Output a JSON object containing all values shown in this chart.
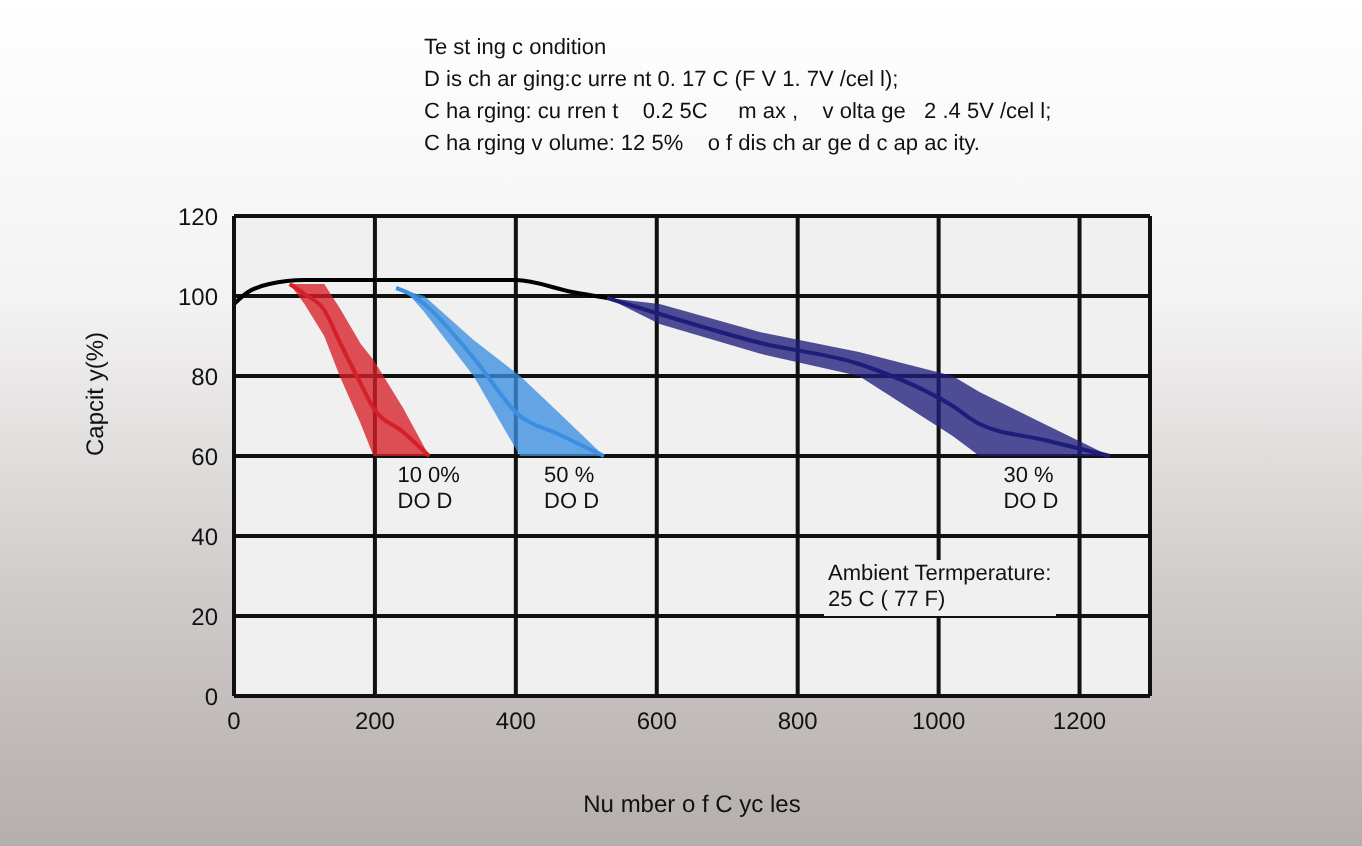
{
  "chart_data": {
    "type": "line",
    "title": "Te st ing c ondition",
    "subtitle": "D is ch ar ging:c urre nt 0. 17 C (F V 1. 7V /cel l);\nC ha rging: cu rren t    0.2 5C     m ax ,    v olta ge   2 .4 5V /cel l;\nC ha rging v olume: 12 5%    o f dis ch ar ge d c ap ac ity.",
    "xlabel": "Nu mber o f C yc les",
    "ylabel": "Capcit y(%)",
    "xlim": [
      0,
      1300
    ],
    "xticks": [
      0,
      200,
      400,
      600,
      800,
      1000,
      1200
    ],
    "ylim": [
      0,
      120
    ],
    "yticks": [
      0,
      20,
      40,
      60,
      80,
      100,
      120
    ],
    "grid": true,
    "legend": false,
    "series": [
      {
        "color": "#000000",
        "x": [
          0,
          20,
          50,
          100,
          200,
          300,
          400,
          480,
          530
        ],
        "values": [
          98,
          101,
          103,
          104,
          104,
          104,
          104,
          101,
          99.5
        ]
      },
      {
        "color": "#d62027",
        "x": [
          79,
          100,
          128,
          150,
          180,
          198,
          240,
          277
        ],
        "values": [
          103,
          100.5,
          96.5,
          88.5,
          78,
          72,
          66,
          60
        ],
        "lower": [
          103,
          98,
          90,
          80,
          68,
          60,
          60,
          60
        ],
        "upper": [
          103,
          103,
          103,
          97,
          88,
          84,
          72,
          60
        ]
      },
      {
        "color": "#3b8ee0",
        "x": [
          230,
          250,
          270,
          340,
          406,
          460,
          525
        ],
        "values": [
          102,
          100.5,
          98,
          84.5,
          70,
          65.5,
          60
        ],
        "lower": [
          102,
          100,
          96,
          80,
          60,
          60,
          60
        ],
        "upper": [
          102,
          101,
          100,
          89,
          80,
          71,
          60
        ]
      },
      {
        "color": "#1f1d7a",
        "x": [
          530,
          604,
          746,
          887,
          1020,
          1058,
          1150,
          1243
        ],
        "values": [
          99.5,
          95.5,
          88.3,
          83,
          72.5,
          68,
          64,
          60
        ],
        "lower": [
          99.5,
          93,
          85.6,
          80,
          65,
          60,
          60,
          60
        ],
        "upper": [
          99.5,
          98,
          91,
          86,
          80,
          76,
          68,
          60
        ]
      }
    ],
    "annotations": [
      {
        "text": "10 0%\nDO D",
        "x": 198,
        "y": 60
      },
      {
        "text": "50 %\nDO D",
        "x": 406,
        "y": 60
      },
      {
        "text": "30 %\nDO D",
        "x": 1058,
        "y": 60
      },
      "Ambient Termperature:\n25 C ( 77 F)"
    ]
  }
}
